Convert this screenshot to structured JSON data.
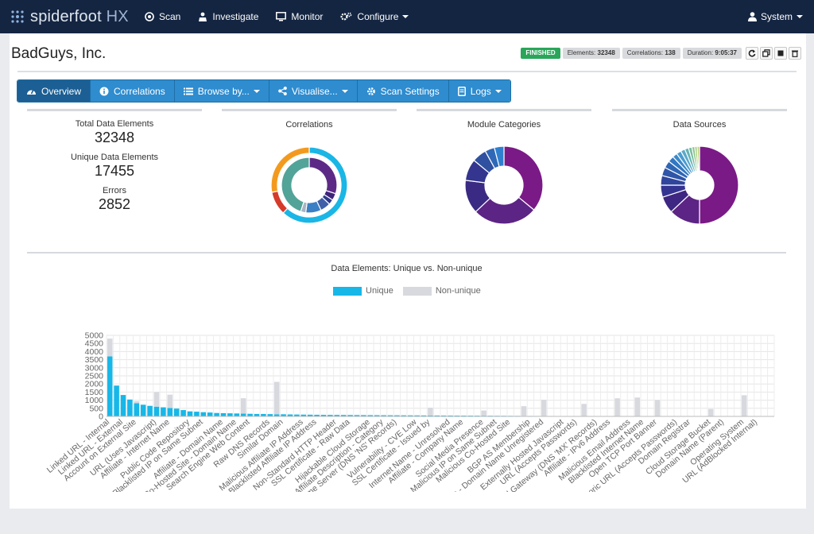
{
  "navbar": {
    "brand_a": "spiderfoot",
    "brand_b": " HX",
    "items": [
      {
        "label": "Scan",
        "icon": "scan-icon"
      },
      {
        "label": "Investigate",
        "icon": "investigate-icon"
      },
      {
        "label": "Monitor",
        "icon": "monitor-icon"
      },
      {
        "label": "Configure",
        "icon": "gears-icon"
      }
    ],
    "user_label": "System"
  },
  "scan": {
    "title": "BadGuys, Inc.",
    "status": "FINISHED",
    "elements_label": "Elements:",
    "elements_value": "32348",
    "correlations_label": "Correlations:",
    "correlations_value": "138",
    "duration_label": "Duration:",
    "duration_value": "9:05:37"
  },
  "tabs": [
    {
      "label": "Overview",
      "icon": "dashboard-icon"
    },
    {
      "label": "Correlations",
      "icon": "info-circle-icon"
    },
    {
      "label": "Browse by...",
      "icon": "list-icon"
    },
    {
      "label": "Visualise...",
      "icon": "share-icon"
    },
    {
      "label": "Scan Settings",
      "icon": "cog-icon"
    },
    {
      "label": "Logs",
      "icon": "file-icon"
    }
  ],
  "summary": {
    "total_label": "Total Data Elements",
    "total_value": "32348",
    "unique_label": "Unique Data Elements",
    "unique_value": "17455",
    "errors_label": "Errors",
    "errors_value": "2852"
  },
  "donuts": [
    {
      "title": "Correlations",
      "outer": [
        {
          "value": 62,
          "color": "#1ab6e6"
        },
        {
          "value": 10,
          "color": "#d63b2a"
        },
        {
          "value": 28,
          "color": "#f39a1e"
        }
      ],
      "inner": [
        {
          "value": 30,
          "color": "#5c2a86"
        },
        {
          "value": 4,
          "color": "#3e237a"
        },
        {
          "value": 3,
          "color": "#2f3a8c"
        },
        {
          "value": 6,
          "color": "#3f5fa8"
        },
        {
          "value": 9,
          "color": "#3b7fc4"
        },
        {
          "value": 3,
          "color": "#a8b4c4"
        },
        {
          "value": 45,
          "color": "#52a398"
        }
      ]
    },
    {
      "title": "Module Categories",
      "outer": [
        {
          "value": 36,
          "color": "#7a1a86"
        },
        {
          "value": 27,
          "color": "#5c2485"
        },
        {
          "value": 14,
          "color": "#3a2a83"
        },
        {
          "value": 9,
          "color": "#33358e"
        },
        {
          "value": 6,
          "color": "#3050a0"
        },
        {
          "value": 4,
          "color": "#3068b8"
        },
        {
          "value": 4,
          "color": "#2f7fcf"
        }
      ]
    },
    {
      "title": "Data Sources",
      "outer": [
        {
          "value": 50,
          "color": "#7a1a86"
        },
        {
          "value": 13,
          "color": "#5c2485"
        },
        {
          "value": 7,
          "color": "#3e2783"
        },
        {
          "value": 5,
          "color": "#343591"
        },
        {
          "value": 4,
          "color": "#30459c"
        },
        {
          "value": 3.5,
          "color": "#2f55a8"
        },
        {
          "value": 3,
          "color": "#2f66b5"
        },
        {
          "value": 2.5,
          "color": "#3177c2"
        },
        {
          "value": 2,
          "color": "#3a8acb"
        },
        {
          "value": 2,
          "color": "#4b9bd0"
        },
        {
          "value": 1.8,
          "color": "#5ca9c9"
        },
        {
          "value": 1.6,
          "color": "#66b3b4"
        },
        {
          "value": 1.4,
          "color": "#78bd9f"
        },
        {
          "value": 1.2,
          "color": "#8ec48b"
        },
        {
          "value": 1,
          "color": "#a6ca7c"
        },
        {
          "value": 1,
          "color": "#bcd07a"
        }
      ]
    }
  ],
  "chart_data": {
    "type": "bar",
    "title": "Data Elements: Unique vs. Non-unique",
    "ylim": [
      0,
      5000
    ],
    "yticks": [
      0,
      500,
      1000,
      1500,
      2000,
      2500,
      3000,
      3500,
      4000,
      4500,
      5000
    ],
    "legend_position": "top",
    "series": [
      {
        "name": "Unique",
        "color": "#17b7e8"
      },
      {
        "name": "Non-unique",
        "color": "#d7d9df"
      }
    ],
    "unique": [
      3700,
      1900,
      1320,
      1040,
      810,
      720,
      650,
      600,
      560,
      520,
      480,
      390,
      310,
      290,
      260,
      240,
      210,
      200,
      190,
      180,
      170,
      160,
      150,
      150,
      140,
      130,
      130,
      120,
      115,
      110,
      105,
      100,
      95,
      92,
      90,
      88,
      85,
      82,
      80,
      77,
      75,
      72,
      70,
      68,
      66,
      64,
      62,
      60,
      58,
      56,
      54,
      52,
      50,
      48,
      46,
      44,
      42,
      40,
      38,
      36,
      34,
      32,
      30,
      28,
      27,
      26,
      25,
      24,
      23,
      22,
      21,
      20,
      19,
      18,
      17,
      16,
      15,
      14,
      13,
      12,
      12,
      11,
      10,
      10,
      9,
      9,
      8,
      8,
      7,
      7,
      6,
      6,
      5,
      5,
      4,
      4,
      3,
      3,
      2,
      2
    ],
    "nonunique": [
      1100,
      0,
      0,
      0,
      130,
      0,
      0,
      0,
      0,
      0,
      0,
      0,
      0,
      0,
      0,
      0,
      0,
      0,
      0,
      0,
      0,
      0,
      0,
      0,
      0,
      0,
      0,
      0,
      0,
      0,
      0,
      0,
      0,
      0,
      0,
      0,
      0,
      0,
      0,
      0,
      0,
      0,
      0,
      0,
      0,
      0,
      0,
      0,
      0,
      0,
      0,
      0,
      0,
      0,
      0,
      0,
      0,
      0,
      0,
      0,
      0,
      0,
      0,
      0,
      0,
      0,
      0,
      0,
      0,
      0,
      0,
      0,
      0,
      0,
      0,
      0,
      0,
      0,
      0,
      0,
      0,
      0,
      0,
      0,
      0,
      0,
      0,
      0,
      0,
      0,
      0,
      0,
      0,
      0,
      0,
      0,
      0,
      0,
      0,
      0
    ],
    "extra_nonunique_idx": [
      7,
      9,
      20,
      25,
      48,
      56,
      62,
      65,
      71,
      76,
      79,
      82,
      90,
      95
    ],
    "extra_nonunique_val": [
      900,
      820,
      950,
      2000,
      480,
      320,
      600,
      1000,
      750,
      1100,
      1150,
      1000,
      450,
      1300
    ],
    "categories": [
      "Linked URL - Internal",
      "Linked URL - External",
      "Account on External Site",
      "URL (Uses Javascript)",
      "Affiliate - Internet Name",
      "Public Code Repository",
      "Blacklisted IP on Same Subnet",
      "Affiliate - Domain Name",
      "Co-Hosted Site - Domain Name",
      "Search Engine Web Content",
      "Raw DNS Records",
      "Similar Domain",
      "Malicious Affiliate IP Address",
      "Blacklisted Affiliate IP Address",
      "Non-Standard HTTP Header",
      "SSL Certificate - Raw Data",
      "Hijackable Cloud Storage",
      "Affiliate Description - Category",
      "Name Server (DNS 'NS' Records)",
      "Vulnerability - CVE Low",
      "SSL Certificate - Issued by",
      "Internet Name - Unresolved",
      "Affiliate - Company Name",
      "Social Media Presence",
      "Malicious IP on Same Subnet",
      "Malicious Co-Hosted Site",
      "BGP AS Membership",
      "Affiliate - Domain Name Unregistered",
      "Externally Hosted Javascript",
      "URL (Accepts Passwords)",
      "Email Gateway (DNS 'MX' Records)",
      "Affiliate - IPv6 Address",
      "Malicious Email Address",
      "Blacklisted Internet Name",
      "Open TCP Port Banner",
      "Historic URL (Accepts Passwords)",
      "Domain Registrar",
      "Cloud Storage Bucket",
      "Domain Name (Parent)",
      "Operating System",
      "URL (AdBlocked Internal)"
    ]
  }
}
